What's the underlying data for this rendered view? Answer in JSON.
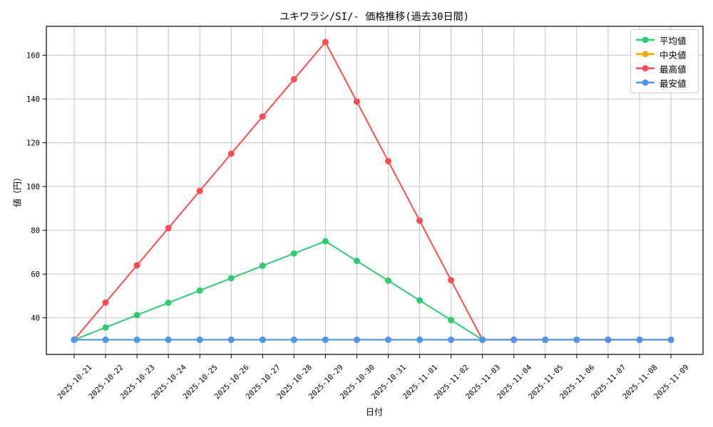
{
  "figure": {
    "title": "ユキワラシ/SI/- 価格推移(過去30日間)",
    "xlabel": "日付",
    "ylabel": "値（円）"
  },
  "chart_data": {
    "type": "line",
    "title": "ユキワラシ/SI/- 価格推移(過去30日間)",
    "xlabel": "日付",
    "ylabel": "値（円）",
    "categories": [
      "2025-10-21",
      "2025-10-22",
      "2025-10-23",
      "2025-10-24",
      "2025-10-25",
      "2025-10-26",
      "2025-10-27",
      "2025-10-28",
      "2025-10-29",
      "2025-10-30",
      "2025-10-31",
      "2025-11-01",
      "2025-11-02",
      "2025-11-03",
      "2025-11-04",
      "2025-11-05",
      "2025-11-06",
      "2025-11-07",
      "2025-11-08",
      "2025-11-09"
    ],
    "series": [
      {
        "id": "average",
        "name": "平均値",
        "color": "#2ecc71",
        "values": [
          30,
          35.6,
          41.3,
          46.9,
          52.5,
          58.1,
          63.8,
          69.4,
          75,
          66,
          57,
          48,
          39,
          30,
          30,
          30,
          30,
          30,
          30,
          30
        ]
      },
      {
        "id": "median",
        "name": "中央値",
        "color": "#ffa500",
        "values": [
          30,
          30,
          30,
          30,
          30,
          30,
          30,
          30,
          30,
          30,
          30,
          30,
          30,
          30,
          30,
          30,
          30,
          30,
          30,
          30
        ]
      },
      {
        "id": "max",
        "name": "最高値",
        "color": "#fa4d4d",
        "values": [
          30,
          47,
          64,
          81,
          98,
          115,
          132,
          149,
          166,
          138.8,
          111.6,
          84.4,
          57.2,
          30,
          30,
          30,
          30,
          30,
          30,
          30
        ]
      },
      {
        "id": "min",
        "name": "最安値",
        "color": "#4c96f2",
        "values": [
          30,
          30,
          30,
          30,
          30,
          30,
          30,
          30,
          30,
          30,
          30,
          30,
          30,
          30,
          30,
          30,
          30,
          30,
          30,
          30
        ]
      }
    ],
    "yticks": [
      40,
      60,
      80,
      100,
      120,
      140,
      160
    ],
    "ylim": [
      23.3,
      173.2
    ],
    "grid": true,
    "legend_position": "upper right",
    "x_tick_rotation": 45
  },
  "colors": {
    "grid": "#c3c3c3",
    "spine": "#000000",
    "background": "#ffffff",
    "legend_border": "#cccccc"
  }
}
